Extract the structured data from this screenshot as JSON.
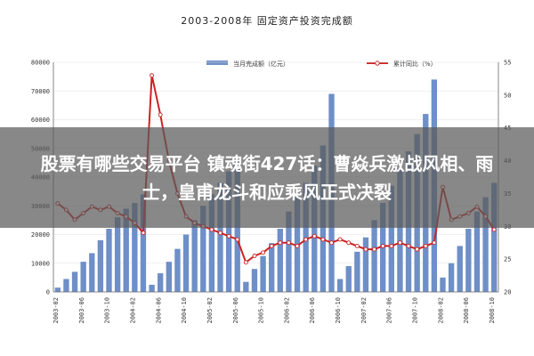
{
  "banner": {
    "headline": "股票有哪些交易平台 镇魂街427话：曹焱兵激战风相、雨士，皇甫龙斗和应乘风正式决裂"
  },
  "chart_data": {
    "type": "bar+line",
    "title": "2003-2008年 固定资产投资完成额",
    "legend": [
      {
        "name": "当月完成额（亿元）",
        "kind": "bar",
        "color": "#6e8fc7"
      },
      {
        "name": "累计同比（%）",
        "kind": "line",
        "color": "#cc2222"
      }
    ],
    "left_axis": {
      "min": 0,
      "max": 80000,
      "ticks": [
        "0",
        "10000",
        "20000",
        "30000",
        "40000",
        "50000",
        "60000",
        "70000",
        "80000"
      ]
    },
    "right_axis": {
      "min": 20,
      "max": 55,
      "ticks": [
        "20",
        "25",
        "30",
        "35",
        "40",
        "45",
        "50",
        "55"
      ]
    },
    "x_labels": [
      "2003-02",
      "2003-06",
      "2003-10",
      "2004-02",
      "2004-06",
      "2004-10",
      "2005-02",
      "2005-06",
      "2005-10",
      "2006-02",
      "2006-06",
      "2006-10",
      "2007-02",
      "2007-06",
      "2007-10",
      "2008-02",
      "2008-06",
      "2008-10"
    ],
    "series": [
      {
        "name": "当月完成额（亿元）",
        "values": [
          1500,
          4500,
          7000,
          10500,
          13500,
          18000,
          22000,
          26000,
          29000,
          31000,
          34000,
          2500,
          6500,
          10500,
          15000,
          20000,
          25000,
          30000,
          34000,
          38000,
          42000,
          46000,
          3500,
          8000,
          12500,
          17000,
          22000,
          28000,
          33000,
          38000,
          44000,
          51000,
          69000,
          4500,
          9000,
          14000,
          19000,
          25000,
          31000,
          37000,
          43000,
          49000,
          55000,
          62000,
          74000,
          5000,
          10000,
          16000,
          22000,
          28000,
          33000,
          38000
        ]
      },
      {
        "name": "累计同比（%）",
        "values": [
          33.5,
          32.5,
          31.0,
          32.0,
          33.0,
          32.5,
          33.0,
          32.0,
          31.5,
          30.5,
          29.0,
          53.0,
          47.0,
          40.0,
          35.0,
          31.5,
          30.5,
          30.0,
          29.5,
          29.0,
          28.5,
          28.0,
          24.5,
          25.5,
          26.0,
          27.0,
          27.5,
          27.5,
          27.0,
          28.0,
          28.5,
          28.0,
          27.5,
          28.0,
          27.5,
          27.0,
          26.5,
          26.5,
          27.0,
          27.0,
          27.5,
          27.0,
          26.5,
          27.0,
          27.5,
          36.0,
          31.0,
          31.5,
          32.0,
          33.0,
          31.5,
          29.5
        ]
      }
    ]
  }
}
